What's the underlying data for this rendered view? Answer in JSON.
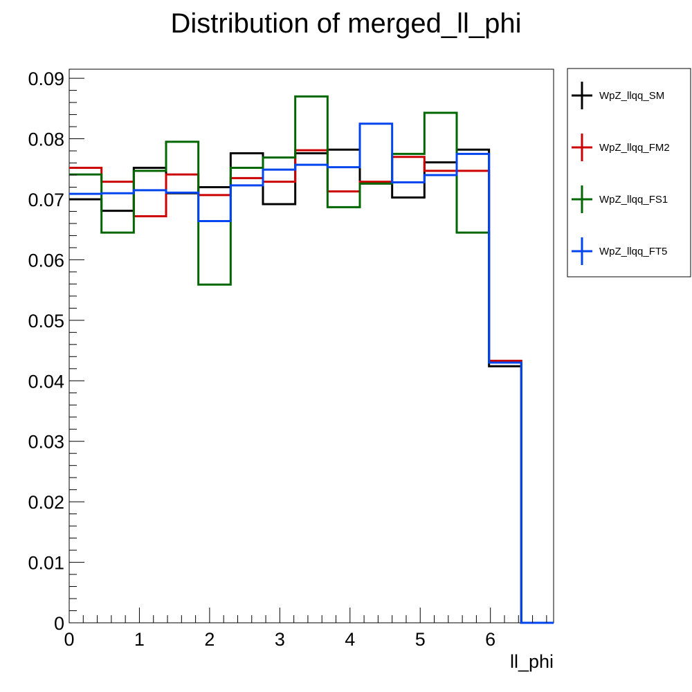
{
  "chart_data": {
    "type": "line",
    "title": "Distribution of merged_ll_phi",
    "xlabel": "ll_phi",
    "ylabel": "",
    "xlim": [
      0,
      6.9
    ],
    "ylim": [
      0,
      0.0915
    ],
    "x_ticks": [
      0,
      1,
      2,
      3,
      4,
      5,
      6
    ],
    "x_tick_labels": [
      "0",
      "1",
      "2",
      "3",
      "4",
      "5",
      "6"
    ],
    "y_ticks": [
      0,
      0.01,
      0.02,
      0.03,
      0.04,
      0.05,
      0.06,
      0.07,
      0.08,
      0.09
    ],
    "y_tick_labels": [
      "0",
      "0.01",
      "0.02",
      "0.03",
      "0.04",
      "0.05",
      "0.06",
      "0.07",
      "0.08",
      "0.09"
    ],
    "bin_edges": [
      0,
      0.46,
      0.92,
      1.38,
      1.84,
      2.3,
      2.76,
      3.22,
      3.68,
      4.14,
      4.6,
      5.06,
      5.52,
      5.98,
      6.44,
      6.9
    ],
    "grid": false,
    "legend_position": "right",
    "series": [
      {
        "name": "WpZ_llqq_SM",
        "color": "#000000",
        "values": [
          0.07,
          0.0681,
          0.0752,
          0.071,
          0.072,
          0.0776,
          0.0692,
          0.0776,
          0.0782,
          0.0726,
          0.0703,
          0.0761,
          0.0782,
          0.0424,
          0.0
        ]
      },
      {
        "name": "WpZ_llqq_FM2",
        "color": "#cc0000",
        "values": [
          0.0752,
          0.0729,
          0.0672,
          0.0741,
          0.0707,
          0.0735,
          0.0729,
          0.0781,
          0.0713,
          0.0729,
          0.077,
          0.0747,
          0.0747,
          0.0433,
          0.0
        ]
      },
      {
        "name": "WpZ_llqq_FS1",
        "color": "#006600",
        "values": [
          0.0741,
          0.0645,
          0.0747,
          0.0795,
          0.0559,
          0.0752,
          0.0769,
          0.087,
          0.0687,
          0.0726,
          0.0775,
          0.0843,
          0.0645,
          0.043,
          0.0
        ]
      },
      {
        "name": "WpZ_llqq_FT5",
        "color": "#0044ee",
        "values": [
          0.0709,
          0.071,
          0.0715,
          0.0711,
          0.0664,
          0.0723,
          0.0749,
          0.0757,
          0.0753,
          0.0825,
          0.0728,
          0.074,
          0.0775,
          0.043,
          0.0
        ]
      }
    ]
  }
}
